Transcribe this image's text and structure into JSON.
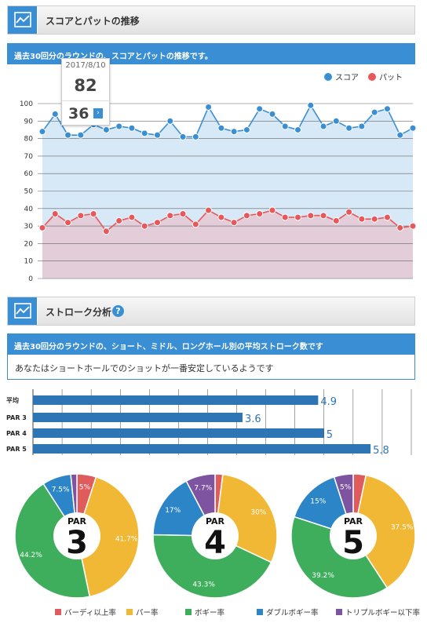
{
  "section1": {
    "title": "スコアとパットの推移",
    "subtitle": "過去30回分のラウンドの、スコアとパットの推移です。"
  },
  "tooltip": {
    "date": "2017/8/10",
    "score": "82",
    "putt": "36",
    "arrow_icon": "chevron-right-icon"
  },
  "chart_data": [
    {
      "type": "line",
      "x": [
        1,
        2,
        3,
        4,
        5,
        6,
        7,
        8,
        9,
        10,
        11,
        12,
        13,
        14,
        15,
        16,
        17,
        18,
        19,
        20,
        21,
        22,
        23,
        24,
        25,
        26,
        27,
        28,
        29,
        30
      ],
      "series": [
        {
          "name": "スコア",
          "color": "#3a8fd4",
          "values": [
            84,
            94,
            82,
            82,
            88,
            85,
            87,
            86,
            83,
            82,
            90,
            81,
            81,
            98,
            86,
            84,
            85,
            97,
            94,
            87,
            85,
            99,
            87,
            90,
            86,
            87,
            95,
            97,
            82,
            86
          ]
        },
        {
          "name": "パット",
          "color": "#e8585a",
          "values": [
            29,
            37,
            32,
            36,
            37,
            27,
            33,
            35,
            30,
            32,
            36,
            37,
            31,
            39,
            35,
            32,
            36,
            37,
            39,
            35,
            35,
            36,
            36,
            33,
            38,
            34,
            34,
            35,
            29,
            30
          ]
        }
      ],
      "ylim": [
        0,
        100
      ],
      "yticks": [
        "0",
        "10",
        "20",
        "30",
        "40",
        "50",
        "60",
        "70",
        "80",
        "90",
        "100"
      ],
      "legend_position": "top-right",
      "grid": true
    },
    {
      "type": "bar",
      "orientation": "horizontal",
      "categories": [
        "平均",
        "PAR 3",
        "PAR 4",
        "PAR 5"
      ],
      "values": [
        4.9,
        3.6,
        5,
        5.8
      ],
      "value_labels": [
        "4.9",
        "3.6",
        "5",
        "5.8"
      ],
      "color": "#2e75b6",
      "xlim": [
        0,
        6.5
      ],
      "grid": true
    },
    {
      "type": "pie",
      "label_top": "PAR",
      "label_main": "3",
      "values": [
        5,
        41.7,
        44.2,
        7.5,
        1.6
      ],
      "labels": [
        "5%",
        "41.7%",
        "44.2%",
        "7.5%",
        ""
      ]
    },
    {
      "type": "pie",
      "label_top": "PAR",
      "label_main": "4",
      "values": [
        2,
        30,
        43.3,
        17,
        7.7
      ],
      "labels": [
        "",
        "30%",
        "43.3%",
        "17%",
        "7.7%"
      ]
    },
    {
      "type": "pie",
      "label_top": "PAR",
      "label_main": "5",
      "values": [
        3.3,
        37.5,
        39.2,
        15,
        5
      ],
      "labels": [
        "",
        "37.5%",
        "39.2%",
        "15%",
        "5%"
      ]
    }
  ],
  "pie_categories": [
    {
      "name": "バーディ以上率",
      "color": "#e05c5c"
    },
    {
      "name": "パー率",
      "color": "#f1b836"
    },
    {
      "name": "ボギー率",
      "color": "#3fae5c"
    },
    {
      "name": "ダブルボギー率",
      "color": "#2b85c6"
    },
    {
      "name": "トリプルボギー以下率",
      "color": "#7e54a1"
    }
  ],
  "section2": {
    "title": "ストローク分析",
    "help": "?",
    "subtitle": "過去30回分のラウンドの、ショート、ミドル、ロングホール別の平均ストローク数です",
    "message": "あなたはショートホールでのショットが一番安定しているようです"
  }
}
